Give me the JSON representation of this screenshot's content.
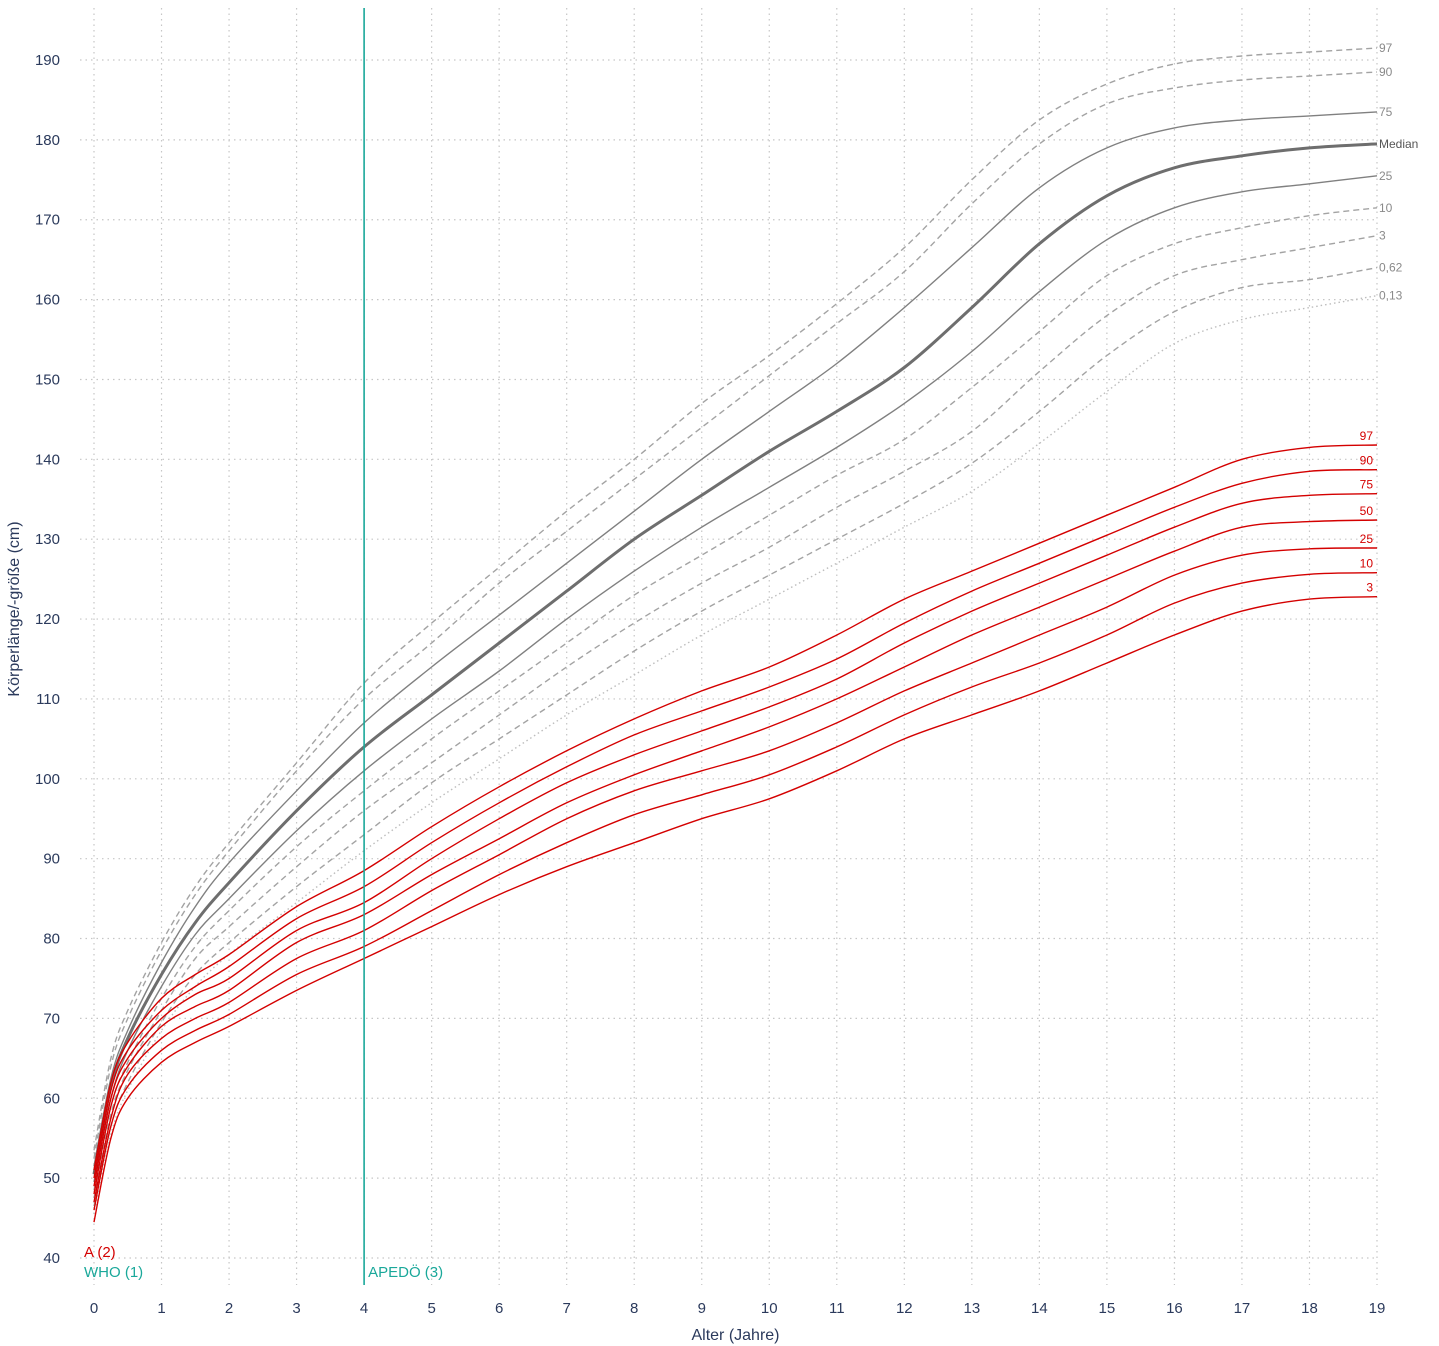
{
  "chart_data": {
    "type": "line",
    "xlabel": "Alter (Jahre)",
    "ylabel": "Körperlänge/-größe (cm)",
    "xlim": [
      0,
      19
    ],
    "ylim": [
      40,
      190
    ],
    "x_ticks": [
      0,
      1,
      2,
      3,
      4,
      5,
      6,
      7,
      8,
      9,
      10,
      11,
      12,
      13,
      14,
      15,
      16,
      17,
      18,
      19
    ],
    "y_ticks": [
      40,
      50,
      60,
      70,
      80,
      90,
      100,
      110,
      120,
      130,
      140,
      150,
      160,
      170,
      180,
      190
    ],
    "grid": true,
    "x": [
      0,
      0.25,
      0.5,
      1,
      1.5,
      2,
      3,
      4,
      5,
      6,
      7,
      8,
      9,
      10,
      11,
      12,
      13,
      14,
      15,
      16,
      17,
      18,
      19
    ],
    "reference_series": [
      {
        "name": "97",
        "style": "dashed",
        "values": [
          53.5,
          65,
          71,
          79.5,
          86.5,
          92,
          102,
          112,
          119.5,
          126.5,
          133.5,
          140,
          147,
          153,
          159.5,
          166.5,
          175,
          182.5,
          187,
          189.5,
          190.5,
          191,
          191.5
        ]
      },
      {
        "name": "90",
        "style": "dashed",
        "values": [
          52.5,
          64,
          70,
          78.5,
          85.5,
          91,
          101,
          110,
          117,
          124.5,
          131,
          137.5,
          144,
          150.5,
          157,
          163.5,
          172,
          179.5,
          184.5,
          186.5,
          187.5,
          188,
          188.5
        ]
      },
      {
        "name": "75",
        "style": "solid",
        "values": [
          51.5,
          62.5,
          68.5,
          77,
          84,
          89.5,
          98.5,
          107,
          114,
          120.5,
          127,
          133.5,
          140,
          146,
          152,
          159,
          166.5,
          174,
          179,
          181.5,
          182.5,
          183,
          183.5
        ]
      },
      {
        "name": "Median",
        "style": "bold",
        "values": [
          50.5,
          61.5,
          67.5,
          75.5,
          82,
          87,
          96,
          104,
          110.5,
          117,
          123.5,
          130,
          135.5,
          141,
          146,
          151.5,
          159,
          167,
          173,
          176.5,
          178,
          179,
          179.5
        ]
      },
      {
        "name": "25",
        "style": "solid",
        "values": [
          49.5,
          60,
          66,
          74,
          80.5,
          85,
          93.5,
          101,
          107.5,
          113.5,
          120,
          126,
          131.5,
          136.5,
          141.5,
          147,
          153.5,
          161,
          167.5,
          171.5,
          173.5,
          174.5,
          175.5
        ]
      },
      {
        "name": "10",
        "style": "dashed",
        "values": [
          48.5,
          59,
          64.5,
          72.5,
          79,
          83.5,
          91.5,
          98.5,
          105,
          111,
          117,
          123,
          128,
          133,
          138,
          142.5,
          149,
          156,
          163,
          167,
          169,
          170.5,
          171.5
        ]
      },
      {
        "name": "3",
        "style": "dashed",
        "values": [
          47.5,
          58,
          63.5,
          71,
          77.5,
          81.5,
          89,
          96,
          102,
          108,
          114,
          119.5,
          124.5,
          129,
          134,
          138.5,
          143.5,
          151,
          158,
          163,
          165,
          166.5,
          168
        ]
      },
      {
        "name": "0,62",
        "style": "dashed",
        "values": [
          46.5,
          56.5,
          62,
          69.5,
          75.5,
          79.5,
          86.5,
          93,
          99.5,
          105,
          110.5,
          116,
          121,
          125.5,
          130,
          134.5,
          139.5,
          146,
          153,
          158.5,
          161.5,
          162.5,
          164
        ]
      },
      {
        "name": "0,13",
        "style": "dotted",
        "values": [
          45.5,
          55.5,
          61,
          68.5,
          74,
          78,
          84.5,
          91,
          97,
          102.5,
          108,
          113,
          118,
          122.5,
          127,
          131.5,
          136,
          142,
          148.5,
          154.5,
          157.5,
          159,
          160.5
        ]
      }
    ],
    "series": [
      {
        "name": "97",
        "values": [
          51,
          62,
          67,
          72.5,
          75.5,
          78,
          84,
          88.5,
          94,
          99,
          103.5,
          107.5,
          111,
          114,
          118,
          122.5,
          126,
          129.5,
          133,
          136.5,
          140,
          141.5,
          141.8
        ]
      },
      {
        "name": "90",
        "values": [
          50,
          61,
          66,
          71,
          74,
          76.5,
          82.5,
          86.5,
          92,
          97,
          101.5,
          105.5,
          108.5,
          111.5,
          115,
          119.5,
          123.5,
          127,
          130.5,
          134,
          137,
          138.5,
          138.7
        ]
      },
      {
        "name": "75",
        "values": [
          49,
          60,
          65,
          70,
          73,
          75,
          81,
          84.5,
          90,
          95,
          99.5,
          103,
          106,
          109,
          112.5,
          117,
          121,
          124.5,
          128,
          131.5,
          134.5,
          135.5,
          135.7
        ]
      },
      {
        "name": "50",
        "values": [
          48,
          59,
          64,
          69,
          71.5,
          73.5,
          79.5,
          83,
          88,
          92.5,
          97,
          100.5,
          103.5,
          106.5,
          110,
          114,
          118,
          121.5,
          125,
          128.5,
          131.5,
          132.2,
          132.4
        ]
      },
      {
        "name": "25",
        "values": [
          47,
          57.5,
          63,
          67.5,
          70,
          72,
          77.5,
          81,
          86,
          90.5,
          95,
          98.5,
          101,
          103.5,
          107,
          111,
          114.5,
          118,
          121.5,
          125.5,
          128,
          128.8,
          128.9
        ]
      },
      {
        "name": "10",
        "values": [
          46,
          56.5,
          61.5,
          66,
          68.5,
          70.5,
          75.5,
          79,
          83.5,
          88,
          92,
          95.5,
          98,
          100.5,
          104,
          108,
          111.5,
          114.5,
          118,
          122,
          124.5,
          125.6,
          125.8
        ]
      },
      {
        "name": "3",
        "values": [
          44.5,
          55,
          60,
          64.5,
          67,
          69,
          73.5,
          77.5,
          81.5,
          85.5,
          89,
          92,
          95,
          97.5,
          101,
          105,
          108,
          111,
          114.5,
          118,
          121,
          122.5,
          122.8
        ]
      }
    ],
    "colors": {
      "reference": "#808080",
      "reference_bold": "#6e6e6e",
      "disease": "#d40000",
      "divider": "#1aa89a",
      "tick": "#2b3a5c",
      "grid": "#c6c6c6"
    },
    "divider_x": 4,
    "annotations": {
      "who": "WHO (1)",
      "apedo": "APEDÖ (3)",
      "a": "A (2)"
    }
  }
}
